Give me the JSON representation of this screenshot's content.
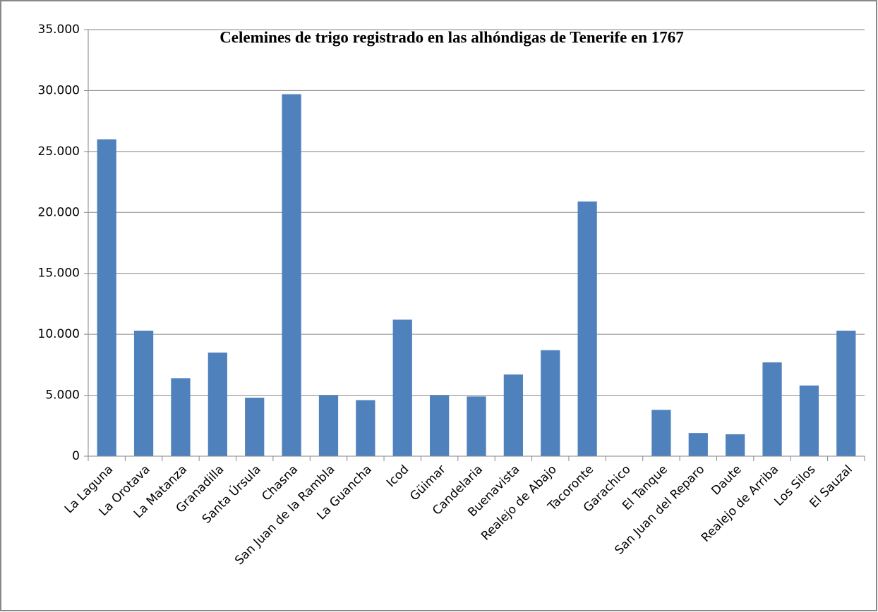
{
  "chart_data": {
    "type": "bar",
    "title": "Celemines de trigo registrado en las alhóndigas de Tenerife en 1767",
    "categories": [
      "La Laguna",
      "La Orotava",
      "La Matanza",
      "Granadilla",
      "Santa Úrsula",
      "Chasna",
      "San Juan de la Rambla",
      "La Guancha",
      "Icod",
      "Güimar",
      "Candelaria",
      "Buenavista",
      "Realejo de Abajo",
      "Tacoronte",
      "Garachico",
      "El Tanque",
      "San Juan del Reparo",
      "Daute",
      "Realejo de Arriba",
      "Los Silos",
      "El Sauzal"
    ],
    "values": [
      26000,
      10300,
      6400,
      8500,
      4800,
      29700,
      5000,
      4600,
      11200,
      5000,
      4900,
      6700,
      8700,
      20900,
      0,
      3800,
      1900,
      1800,
      7700,
      5800,
      10300
    ],
    "color": "#4f81bd",
    "ylim": [
      0,
      35000
    ],
    "yticks": [
      0,
      {
        "value": 5000,
        "label": "5.000"
      },
      {
        "value": 10000,
        "label": "10.000"
      },
      {
        "value": 15000,
        "label": "15.000"
      },
      {
        "value": 20000,
        "label": "20.000"
      },
      {
        "value": 25000,
        "label": "25.000"
      },
      {
        "value": 30000,
        "label": "30.000"
      },
      {
        "value": 35000,
        "label": "35.000"
      }
    ],
    "grid": true
  }
}
